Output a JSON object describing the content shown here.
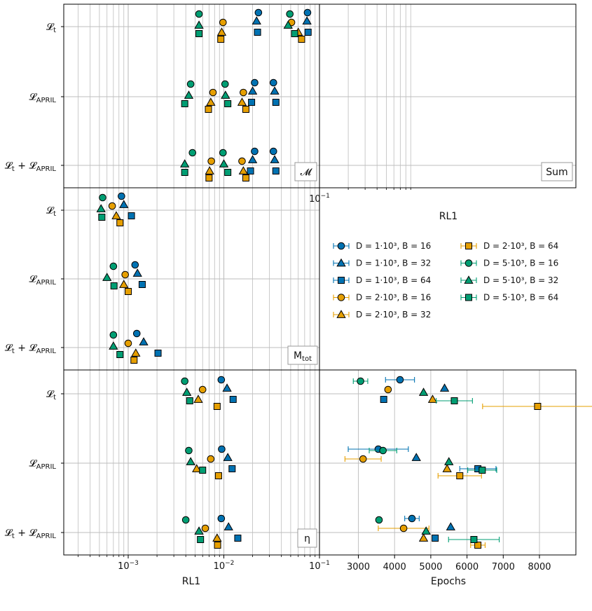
{
  "colors": {
    "D1000": "#0072B2",
    "D2000": "#E69F00",
    "D5000": "#009E73"
  },
  "legend": {
    "entries": [
      {
        "marker": "circle",
        "color": "#0072B2",
        "text": "D = 1·10³, B = 16"
      },
      {
        "marker": "triangle",
        "color": "#0072B2",
        "text": "D = 1·10³, B = 32"
      },
      {
        "marker": "square",
        "color": "#0072B2",
        "text": "D = 1·10³, B = 64"
      },
      {
        "marker": "circle",
        "color": "#E69F00",
        "text": "D = 2·10³, B = 16"
      },
      {
        "marker": "triangle",
        "color": "#E69F00",
        "text": "D = 2·10³, B = 32"
      },
      {
        "marker": "square",
        "color": "#E69F00",
        "text": "D = 2·10³, B = 64"
      },
      {
        "marker": "circle",
        "color": "#009E73",
        "text": "D = 5·10³, B = 16"
      },
      {
        "marker": "triangle",
        "color": "#009E73",
        "text": "D = 5·10³, B = 32"
      },
      {
        "marker": "square",
        "color": "#009E73",
        "text": "D = 5·10³, B = 64"
      }
    ]
  },
  "chart_data": [
    {
      "panel": "M",
      "type": "scatter",
      "annotation": "𝓜",
      "xscale": "log",
      "xlim": [
        0.0002,
        0.1
      ],
      "xlabel": "",
      "ylabel": "",
      "grid": true,
      "categories": [
        "𝓛t",
        "𝓛APRIL",
        "𝓛t + 𝓛APRIL"
      ],
      "series": [
        {
          "name": "D = 1·10³, B = 16",
          "values": [
            0.023,
            0.021,
            0.021
          ]
        },
        {
          "name": "D = 1·10³, B = 32",
          "values": [
            0.022,
            0.02,
            0.02
          ]
        },
        {
          "name": "D = 1·10³, B = 64",
          "values": [
            0.0225,
            0.0195,
            0.019
          ]
        },
        {
          "name": "D = 2·10³, B = 16",
          "values": [
            0.0098,
            0.0077,
            0.0074
          ]
        },
        {
          "name": "D = 2·10³, B = 32",
          "values": [
            0.0095,
            0.0073,
            0.0071
          ]
        },
        {
          "name": "D = 2·10³, B = 64",
          "values": [
            0.0093,
            0.0069,
            0.007
          ]
        },
        {
          "name": "D = 5·10³, B = 16",
          "values": [
            0.0055,
            0.0045,
            0.0047
          ]
        },
        {
          "name": "D = 5·10³, B = 32",
          "values": [
            0.0055,
            0.0043,
            0.0039
          ]
        },
        {
          "name": "D = 5·10³, B = 64",
          "values": [
            0.0055,
            0.0039,
            0.0039
          ]
        }
      ]
    },
    {
      "panel": "Sum",
      "type": "scatter",
      "annotation": "Sum",
      "xscale": "log",
      "xlim": [
        0.0002,
        0.1
      ],
      "xlabel": "RL1",
      "xticks": [
        "10⁻³",
        "10⁻²",
        "10⁻¹"
      ],
      "grid": true,
      "categories": [
        "𝓛t",
        "𝓛APRIL",
        "𝓛t + 𝓛APRIL"
      ],
      "series": [
        {
          "name": "D = 1·10³, B = 16",
          "values": [
            0.075,
            0.033,
            0.033
          ]
        },
        {
          "name": "D = 1·10³, B = 32",
          "values": [
            0.074,
            0.034,
            0.034
          ]
        },
        {
          "name": "D = 1·10³, B = 64",
          "values": [
            0.076,
            0.035,
            0.035
          ]
        },
        {
          "name": "D = 2·10³, B = 16",
          "values": [
            0.051,
            0.016,
            0.0155
          ]
        },
        {
          "name": "D = 2·10³, B = 32",
          "values": [
            0.06,
            0.0155,
            0.016
          ]
        },
        {
          "name": "D = 2·10³, B = 64",
          "values": [
            0.065,
            0.017,
            0.017
          ]
        },
        {
          "name": "D = 5·10³, B = 16",
          "values": [
            0.049,
            0.0103,
            0.0098
          ]
        },
        {
          "name": "D = 5·10³, B = 32",
          "values": [
            0.047,
            0.0104,
            0.01
          ]
        },
        {
          "name": "D = 5·10³, B = 64",
          "values": [
            0.055,
            0.011,
            0.011
          ]
        }
      ]
    },
    {
      "panel": "Mtot",
      "type": "scatter",
      "annotation": "Mtot",
      "xscale": "log",
      "xlim": [
        0.0002,
        0.1
      ],
      "grid": true,
      "categories": [
        "𝓛t",
        "𝓛APRIL",
        "𝓛t + 𝓛APRIL"
      ],
      "series": [
        {
          "name": "D = 1·10³, B = 16",
          "values": [
            0.00085,
            0.00118,
            0.00123
          ]
        },
        {
          "name": "D = 1·10³, B = 32",
          "values": [
            0.0009,
            0.00125,
            0.00145
          ]
        },
        {
          "name": "D = 1·10³, B = 64",
          "values": [
            0.00108,
            0.0014,
            0.00205
          ]
        },
        {
          "name": "D = 2·10³, B = 16",
          "values": [
            0.00068,
            0.00093,
            0.001
          ]
        },
        {
          "name": "D = 2·10³, B = 32",
          "values": [
            0.00075,
            0.0009,
            0.0012
          ]
        },
        {
          "name": "D = 2·10³, B = 64",
          "values": [
            0.00082,
            0.001,
            0.00115
          ]
        },
        {
          "name": "D = 5·10³, B = 16",
          "values": [
            0.00054,
            0.0007,
            0.0007
          ]
        },
        {
          "name": "D = 5·10³, B = 32",
          "values": [
            0.00052,
            0.0006,
            0.0007
          ]
        },
        {
          "name": "D = 5·10³, B = 64",
          "values": [
            0.00053,
            0.00071,
            0.00082
          ]
        }
      ]
    },
    {
      "panel": "eta",
      "type": "scatter",
      "annotation": "η",
      "xscale": "log",
      "xlim": [
        0.0002,
        0.1
      ],
      "xlabel": "RL1",
      "xticks": [
        "10⁻³",
        "10⁻²",
        "10⁻¹"
      ],
      "grid": true,
      "categories": [
        "𝓛t",
        "𝓛APRIL",
        "𝓛t + 𝓛APRIL"
      ],
      "series": [
        {
          "name": "D = 1·10³, B = 16",
          "values": [
            0.0094,
            0.0095,
            0.0094
          ]
        },
        {
          "name": "D = 1·10³, B = 32",
          "values": [
            0.0108,
            0.011,
            0.0112
          ]
        },
        {
          "name": "D = 1·10³, B = 64",
          "values": [
            0.0125,
            0.0122,
            0.014
          ]
        },
        {
          "name": "D = 2·10³, B = 16",
          "values": [
            0.006,
            0.0073,
            0.0064
          ]
        },
        {
          "name": "D = 2·10³, B = 32",
          "values": [
            0.0054,
            0.0052,
            0.0085
          ]
        },
        {
          "name": "D = 2·10³, B = 64",
          "values": [
            0.0085,
            0.0088,
            0.0086
          ]
        },
        {
          "name": "D = 5·10³, B = 16",
          "values": [
            0.0039,
            0.0043,
            0.004
          ]
        },
        {
          "name": "D = 5·10³, B = 32",
          "values": [
            0.0041,
            0.0045,
            0.0055
          ]
        },
        {
          "name": "D = 5·10³, B = 64",
          "values": [
            0.0044,
            0.006,
            0.0057
          ]
        }
      ]
    },
    {
      "panel": "epochs",
      "type": "scatter",
      "xscale": "linear",
      "xlim": [
        2600,
        8900
      ],
      "xlabel": "Epochs",
      "xticks": [
        "3000",
        "4000",
        "5000",
        "6000",
        "7000",
        "8000"
      ],
      "grid": true,
      "categories": [
        "𝓛t",
        "𝓛APRIL",
        "𝓛t + 𝓛APRIL"
      ],
      "series": [
        {
          "name": "D = 1·10³, B = 16",
          "values": [
            4150,
            3550,
            4480
          ],
          "errors": [
            400,
            830,
            200
          ]
        },
        {
          "name": "D = 1·10³, B = 32",
          "values": [
            5380,
            4600,
            5550
          ],
          "errors": [
            0,
            0,
            0
          ]
        },
        {
          "name": "D = 1·10³, B = 64",
          "values": [
            3700,
            6300,
            5120
          ],
          "errors": [
            0,
            500,
            0
          ]
        },
        {
          "name": "D = 2·10³, B = 16",
          "values": [
            3820,
            3130,
            4250
          ],
          "errors": [
            0,
            500,
            700
          ]
        },
        {
          "name": "D = 2·10³, B = 32",
          "values": [
            5050,
            5450,
            4800
          ],
          "errors": [
            0,
            0,
            0
          ]
        },
        {
          "name": "D = 2·10³, B = 64",
          "values": [
            7950,
            5800,
            6300
          ],
          "errors": [
            1520,
            600,
            200
          ]
        },
        {
          "name": "D = 5·10³, B = 16",
          "values": [
            3060,
            3680,
            3570
          ],
          "errors": [
            200,
            380,
            0
          ]
        },
        {
          "name": "D = 5·10³, B = 32",
          "values": [
            4800,
            5500,
            4870
          ],
          "errors": [
            0,
            0,
            0
          ]
        },
        {
          "name": "D = 5·10³, B = 64",
          "values": [
            5650,
            6420,
            6190
          ],
          "errors": [
            500,
            400,
            700
          ]
        }
      ]
    }
  ]
}
